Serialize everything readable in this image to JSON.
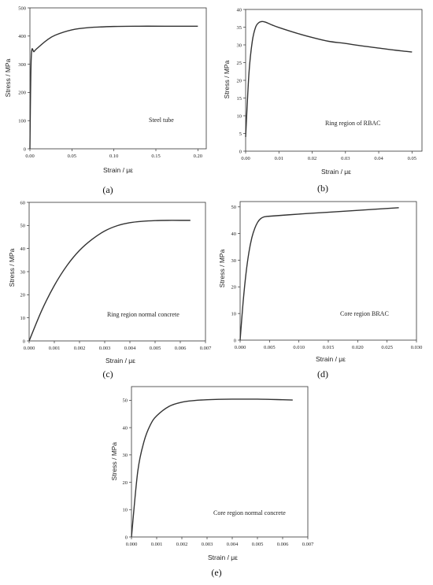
{
  "chart_data": [
    {
      "type": "line",
      "caption": "(a)",
      "annotation": "Steel tube",
      "xlabel": "Strain / με",
      "ylabel": "Stress / MPa",
      "xlim": [
        0,
        0.21
      ],
      "ylim": [
        0,
        500
      ],
      "xticks": [
        "0.00",
        "0.05",
        "0.10",
        "0.15",
        "0.20"
      ],
      "xtick_values": [
        0,
        0.05,
        0.1,
        0.15,
        0.2
      ],
      "yticks": [
        "0",
        "100",
        "200",
        "300",
        "400",
        "500"
      ],
      "ytick_values": [
        0,
        100,
        200,
        300,
        400,
        500
      ],
      "series": [
        {
          "x": [
            0,
            0.0016,
            0.005,
            0.01,
            0.02,
            0.03,
            0.05,
            0.07,
            0.1,
            0.13,
            0.16,
            0.2
          ],
          "y": [
            0,
            325,
            345,
            360,
            385,
            403,
            422,
            430,
            434,
            435,
            435,
            435
          ]
        }
      ]
    },
    {
      "type": "line",
      "caption": "(b)",
      "annotation": "Ring region of RBAC",
      "xlabel": "Strain / με",
      "ylabel": "Stress / MPa",
      "xlim": [
        0,
        0.053
      ],
      "ylim": [
        0,
        40
      ],
      "xticks": [
        "0.00",
        "0.01",
        "0.02",
        "0.03",
        "0.04",
        "0.05"
      ],
      "xtick_values": [
        0,
        0.01,
        0.02,
        0.03,
        0.04,
        0.05
      ],
      "yticks": [
        "0",
        "5",
        "10",
        "15",
        "20",
        "25",
        "30",
        "35",
        "40"
      ],
      "ytick_values": [
        0,
        5,
        10,
        15,
        20,
        25,
        30,
        35,
        40
      ],
      "series": [
        {
          "x": [
            0,
            0.001,
            0.002,
            0.003,
            0.004,
            0.005,
            0.006,
            0.008,
            0.01,
            0.015,
            0.02,
            0.025,
            0.03,
            0.035,
            0.04,
            0.045,
            0.05
          ],
          "y": [
            4,
            22,
            31,
            35,
            36.3,
            36.6,
            36.4,
            35.6,
            34.9,
            33.4,
            32.1,
            31.0,
            30.4,
            29.7,
            29.1,
            28.5,
            28.0
          ]
        }
      ]
    },
    {
      "type": "line",
      "caption": "(c)",
      "annotation": "Ring region normal concrete",
      "xlabel": "Strain / με",
      "ylabel": "Stress / MPa",
      "xlim": [
        0,
        0.007
      ],
      "ylim": [
        0,
        60
      ],
      "xticks": [
        "0.000",
        "0.001",
        "0.002",
        "0.003",
        "0.004",
        "0.005",
        "0.006",
        "0.007"
      ],
      "xtick_values": [
        0,
        0.001,
        0.002,
        0.003,
        0.004,
        0.005,
        0.006,
        0.007
      ],
      "yticks": [
        "0",
        "10",
        "20",
        "30",
        "40",
        "50",
        "60"
      ],
      "ytick_values": [
        0,
        10,
        20,
        30,
        40,
        50,
        60
      ],
      "series": [
        {
          "x": [
            0,
            0.0005,
            0.001,
            0.0015,
            0.002,
            0.0025,
            0.003,
            0.0035,
            0.004,
            0.0045,
            0.005,
            0.0055,
            0.006,
            0.0064
          ],
          "y": [
            0,
            13.2,
            24.0,
            32.6,
            39.2,
            44.0,
            47.6,
            49.9,
            51.2,
            51.8,
            52.1,
            52.2,
            52.2,
            52.2
          ]
        }
      ]
    },
    {
      "type": "line",
      "caption": "(d)",
      "annotation": "Core region BRAC",
      "xlabel": "Strain / με",
      "ylabel": "Stress / MPa",
      "xlim": [
        0,
        0.03
      ],
      "ylim": [
        0,
        52
      ],
      "xticks": [
        "0.000",
        "0.005",
        "0.010",
        "0.015",
        "0.020",
        "0.025",
        "0.030"
      ],
      "xtick_values": [
        0,
        0.005,
        0.01,
        0.015,
        0.02,
        0.025,
        0.03
      ],
      "yticks": [
        "0",
        "10",
        "20",
        "30",
        "40",
        "50"
      ],
      "ytick_values": [
        0,
        10,
        20,
        30,
        40,
        50
      ],
      "series": [
        {
          "x": [
            0,
            0.0005,
            0.001,
            0.0015,
            0.002,
            0.0025,
            0.003,
            0.0035,
            0.004,
            0.0045,
            0.005,
            0.01,
            0.015,
            0.02,
            0.027
          ],
          "y": [
            0,
            14,
            25,
            33,
            38.5,
            42,
            44.3,
            45.6,
            46.2,
            46.4,
            46.5,
            47.3,
            48.0,
            48.7,
            49.7
          ]
        }
      ]
    },
    {
      "type": "line",
      "caption": "(e)",
      "annotation": "Core region normal concrete",
      "xlabel": "Strain / με",
      "ylabel": "Stress / MPa",
      "xlim": [
        0,
        0.007
      ],
      "ylim": [
        0,
        55
      ],
      "xticks": [
        "0.000",
        "0.001",
        "0.002",
        "0.003",
        "0.004",
        "0.005",
        "0.006",
        "0.007"
      ],
      "xtick_values": [
        0,
        0.001,
        0.002,
        0.003,
        0.004,
        0.005,
        0.006,
        0.007
      ],
      "yticks": [
        "0",
        "10",
        "20",
        "30",
        "40",
        "50"
      ],
      "ytick_values": [
        0,
        10,
        20,
        30,
        40,
        50
      ],
      "series": [
        {
          "x": [
            0,
            0.00025,
            0.0005,
            0.00075,
            0.001,
            0.0015,
            0.002,
            0.0025,
            0.003,
            0.004,
            0.005,
            0.006,
            0.0064
          ],
          "y": [
            0,
            24,
            35,
            41,
            44.3,
            47.8,
            49.3,
            49.9,
            50.2,
            50.4,
            50.4,
            50.2,
            50.1
          ]
        }
      ]
    }
  ]
}
